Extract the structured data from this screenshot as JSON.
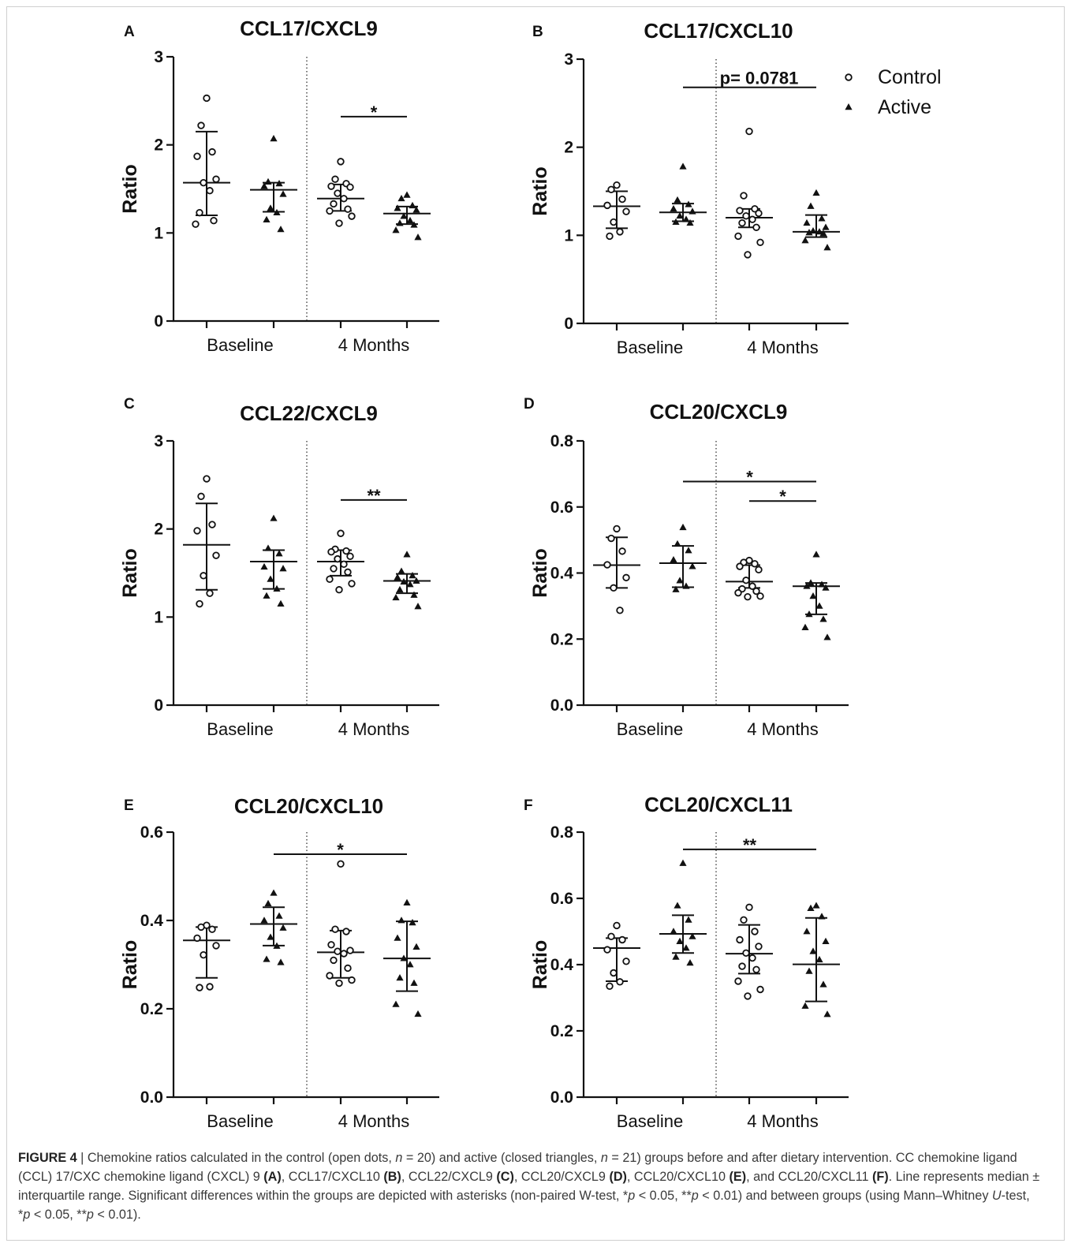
{
  "caption": {
    "label": "FIGURE 4",
    "separator": " | ",
    "text_1": "Chemokine ratios calculated in the control (open dots, ",
    "n_1": "n",
    "text_2": " = 20) and active (closed triangles, ",
    "n_2": "n",
    "text_3": " = 21) groups before and after dietary intervention. CC chemokine ligand (CCL) 17/CXC chemokine ligand (CXCL) 9 ",
    "ref_a": "(A)",
    "text_4": ", CCL17/CXCL10 ",
    "ref_b": "(B)",
    "text_5": ", CCL22/CXCL9 ",
    "ref_c": "(C)",
    "text_6": ", CCL20/CXCL9 ",
    "ref_d": "(D)",
    "text_7": ", CCL20/CXCL10 ",
    "ref_e": "(E)",
    "text_8": ", and CCL20/CXCL11 ",
    "ref_f": "(F)",
    "text_9": ". Line represents median ± interquartile range. Significant differences within the groups are depicted with asterisks (non-paired W-test, *",
    "p_1": "p",
    "text_10": " < 0.05, **",
    "p_2": "p",
    "text_11": " < 0.01) and between groups (using Mann–Whitney ",
    "u": "U",
    "text_12": "-test, *",
    "p_3": "p",
    "text_13": " < 0.05, **",
    "p_4": "p",
    "text_14": " < 0.01)."
  },
  "legend": {
    "items": [
      {
        "label": "Control",
        "marker": "open-circle"
      },
      {
        "label": "Active",
        "marker": "filled-triangle"
      }
    ]
  },
  "chart_data": [
    {
      "letter": "A",
      "title": "CCL17/CXCL9",
      "type": "scatter",
      "ylabel": "Ratio",
      "ylim": [
        0,
        3
      ],
      "yticks": [
        0,
        1,
        2,
        3
      ],
      "yticklabels": [
        "0",
        "1",
        "2",
        "3"
      ],
      "x_groups": [
        "Baseline",
        "4 Months"
      ],
      "series": [
        {
          "group": "Baseline",
          "marker": "circle",
          "points": [
            2.53,
            2.22,
            1.92,
            1.87,
            1.61,
            1.57,
            1.48,
            1.23,
            1.14,
            1.1
          ],
          "median": 1.57,
          "q1": 1.2,
          "q3": 2.15
        },
        {
          "group": "Baseline",
          "marker": "triangle",
          "points": [
            2.07,
            1.58,
            1.56,
            1.53,
            1.44,
            1.28,
            1.23,
            1.15,
            1.04
          ],
          "median": 1.49,
          "q1": 1.24,
          "q3": 1.57
        },
        {
          "group": "4 Months",
          "marker": "circle",
          "points": [
            1.81,
            1.61,
            1.56,
            1.53,
            1.52,
            1.45,
            1.39,
            1.33,
            1.27,
            1.25,
            1.19,
            1.11
          ],
          "median": 1.39,
          "q1": 1.25,
          "q3": 1.55
        },
        {
          "group": "4 Months",
          "marker": "triangle",
          "points": [
            1.43,
            1.39,
            1.31,
            1.28,
            1.26,
            1.19,
            1.14,
            1.11,
            1.09,
            1.03,
            0.95
          ],
          "median": 1.22,
          "q1": 1.1,
          "q3": 1.3
        }
      ],
      "sig": [
        {
          "label": "*",
          "y": 2.32,
          "from": 2,
          "to": 3
        }
      ]
    },
    {
      "letter": "B",
      "title": "CCL17/CXCL10",
      "type": "scatter",
      "ylabel": "Ratio",
      "ylim": [
        0,
        3
      ],
      "yticks": [
        0,
        1,
        2,
        3
      ],
      "yticklabels": [
        "0",
        "1",
        "2",
        "3"
      ],
      "x_groups": [
        "Baseline",
        "4 Months"
      ],
      "series": [
        {
          "group": "Baseline",
          "marker": "circle",
          "points": [
            1.57,
            1.52,
            1.41,
            1.34,
            1.27,
            1.15,
            1.04,
            0.99
          ],
          "median": 1.33,
          "q1": 1.08,
          "q3": 1.5
        },
        {
          "group": "Baseline",
          "marker": "triangle",
          "points": [
            1.78,
            1.4,
            1.35,
            1.3,
            1.27,
            1.22,
            1.18,
            1.15,
            1.14
          ],
          "median": 1.26,
          "q1": 1.16,
          "q3": 1.36
        },
        {
          "group": "4 Months",
          "marker": "circle",
          "points": [
            2.18,
            1.45,
            1.3,
            1.28,
            1.25,
            1.22,
            1.18,
            1.14,
            1.09,
            0.99,
            0.92,
            0.78
          ],
          "median": 1.2,
          "q1": 1.09,
          "q3": 1.3
        },
        {
          "group": "4 Months",
          "marker": "triangle",
          "points": [
            1.48,
            1.33,
            1.19,
            1.14,
            1.09,
            1.05,
            1.04,
            1.03,
            1.02,
            0.94,
            0.86
          ],
          "median": 1.04,
          "q1": 0.98,
          "q3": 1.23
        }
      ],
      "sig": [
        {
          "label": "p= 0.0781",
          "y": 2.68,
          "from": 1,
          "to": 3
        }
      ]
    },
    {
      "letter": "C",
      "title": "CCL22/CXCL9",
      "type": "scatter",
      "ylabel": "Ratio",
      "ylim": [
        0,
        3
      ],
      "yticks": [
        0,
        1,
        2,
        3
      ],
      "yticklabels": [
        "0",
        "1",
        "2",
        "3"
      ],
      "x_groups": [
        "Baseline",
        "4 Months"
      ],
      "series": [
        {
          "group": "Baseline",
          "marker": "circle",
          "points": [
            2.57,
            2.37,
            2.05,
            1.98,
            1.7,
            1.47,
            1.27,
            1.15
          ],
          "median": 1.82,
          "q1": 1.31,
          "q3": 2.29
        },
        {
          "group": "Baseline",
          "marker": "triangle",
          "points": [
            2.12,
            1.78,
            1.72,
            1.57,
            1.55,
            1.43,
            1.32,
            1.24,
            1.15
          ],
          "median": 1.63,
          "q1": 1.32,
          "q3": 1.76
        },
        {
          "group": "4 Months",
          "marker": "circle",
          "points": [
            1.95,
            1.77,
            1.75,
            1.74,
            1.69,
            1.66,
            1.6,
            1.55,
            1.51,
            1.43,
            1.38,
            1.31
          ],
          "median": 1.63,
          "q1": 1.47,
          "q3": 1.76
        },
        {
          "group": "4 Months",
          "marker": "triangle",
          "points": [
            1.71,
            1.52,
            1.47,
            1.45,
            1.41,
            1.4,
            1.37,
            1.31,
            1.25,
            1.22,
            1.12
          ],
          "median": 1.41,
          "q1": 1.27,
          "q3": 1.49
        }
      ],
      "sig": [
        {
          "label": "**",
          "y": 2.33,
          "from": 2,
          "to": 3
        }
      ]
    },
    {
      "letter": "D",
      "title": "CCL20/CXCL9",
      "type": "scatter",
      "ylabel": "Ratio",
      "ylim": [
        0,
        0.8
      ],
      "yticks": [
        0,
        0.2,
        0.4,
        0.6,
        0.8
      ],
      "yticklabels": [
        "0.0",
        "0.2",
        "0.4",
        "0.6",
        "0.8"
      ],
      "x_groups": [
        "Baseline",
        "4 Months"
      ],
      "series": [
        {
          "group": "Baseline",
          "marker": "circle",
          "points": [
            0.534,
            0.505,
            0.466,
            0.425,
            0.386,
            0.355,
            0.287
          ],
          "median": 0.424,
          "q1": 0.355,
          "q3": 0.508
        },
        {
          "group": "Baseline",
          "marker": "triangle",
          "points": [
            0.538,
            0.488,
            0.468,
            0.44,
            0.42,
            0.377,
            0.36,
            0.35
          ],
          "median": 0.43,
          "q1": 0.357,
          "q3": 0.482
        },
        {
          "group": "4 Months",
          "marker": "circle",
          "points": [
            0.438,
            0.432,
            0.428,
            0.42,
            0.41,
            0.378,
            0.36,
            0.352,
            0.345,
            0.34,
            0.33,
            0.328
          ],
          "median": 0.374,
          "q1": 0.355,
          "q3": 0.424
        },
        {
          "group": "4 Months",
          "marker": "triangle",
          "points": [
            0.456,
            0.37,
            0.365,
            0.36,
            0.355,
            0.33,
            0.3,
            0.275,
            0.26,
            0.235,
            0.205
          ],
          "median": 0.36,
          "q1": 0.275,
          "q3": 0.37
        }
      ],
      "sig": [
        {
          "label": "*",
          "y": 0.677,
          "from": 1,
          "to": 3
        },
        {
          "label": "*",
          "y": 0.618,
          "from": 2,
          "to": 3
        }
      ]
    },
    {
      "letter": "E",
      "title": "CCL20/CXCL10",
      "type": "scatter",
      "ylabel": "Ratio",
      "ylim": [
        0,
        0.6
      ],
      "yticks": [
        0,
        0.2,
        0.4,
        0.6
      ],
      "yticklabels": [
        "0.0",
        "0.2",
        "0.4",
        "0.6"
      ],
      "x_groups": [
        "Baseline",
        "4 Months"
      ],
      "series": [
        {
          "group": "Baseline",
          "marker": "circle",
          "points": [
            0.389,
            0.385,
            0.38,
            0.36,
            0.343,
            0.322,
            0.25,
            0.248
          ],
          "median": 0.355,
          "q1": 0.27,
          "q3": 0.385
        },
        {
          "group": "Baseline",
          "marker": "triangle",
          "points": [
            0.462,
            0.438,
            0.41,
            0.4,
            0.383,
            0.362,
            0.342,
            0.312,
            0.305
          ],
          "median": 0.392,
          "q1": 0.343,
          "q3": 0.43
        },
        {
          "group": "4 Months",
          "marker": "circle",
          "points": [
            0.528,
            0.38,
            0.375,
            0.345,
            0.332,
            0.33,
            0.325,
            0.31,
            0.292,
            0.275,
            0.265,
            0.258
          ],
          "median": 0.328,
          "q1": 0.27,
          "q3": 0.377
        },
        {
          "group": "4 Months",
          "marker": "triangle",
          "points": [
            0.44,
            0.4,
            0.395,
            0.36,
            0.34,
            0.314,
            0.3,
            0.27,
            0.258,
            0.21,
            0.188
          ],
          "median": 0.314,
          "q1": 0.24,
          "q3": 0.398
        }
      ],
      "sig": [
        {
          "label": "*",
          "y": 0.55,
          "from": 1,
          "to": 3
        }
      ]
    },
    {
      "letter": "F",
      "title": "CCL20/CXCL11",
      "type": "scatter",
      "ylabel": "Ratio",
      "ylim": [
        0,
        0.8
      ],
      "yticks": [
        0,
        0.2,
        0.4,
        0.6,
        0.8
      ],
      "yticklabels": [
        "0.0",
        "0.2",
        "0.4",
        "0.6",
        "0.8"
      ],
      "x_groups": [
        "Baseline",
        "4 Months"
      ],
      "series": [
        {
          "group": "Baseline",
          "marker": "circle",
          "points": [
            0.518,
            0.485,
            0.475,
            0.445,
            0.41,
            0.375,
            0.348,
            0.335
          ],
          "median": 0.45,
          "q1": 0.35,
          "q3": 0.48
        },
        {
          "group": "Baseline",
          "marker": "triangle",
          "points": [
            0.706,
            0.578,
            0.535,
            0.5,
            0.485,
            0.47,
            0.45,
            0.423,
            0.405
          ],
          "median": 0.493,
          "q1": 0.435,
          "q3": 0.549
        },
        {
          "group": "4 Months",
          "marker": "circle",
          "points": [
            0.573,
            0.535,
            0.5,
            0.475,
            0.455,
            0.435,
            0.42,
            0.395,
            0.385,
            0.35,
            0.325,
            0.305
          ],
          "median": 0.433,
          "q1": 0.373,
          "q3": 0.52
        },
        {
          "group": "4 Months",
          "marker": "triangle",
          "points": [
            0.578,
            0.57,
            0.545,
            0.5,
            0.47,
            0.44,
            0.415,
            0.38,
            0.34,
            0.275,
            0.25
          ],
          "median": 0.401,
          "q1": 0.289,
          "q3": 0.541
        }
      ],
      "sig": [
        {
          "label": "**",
          "y": 0.748,
          "from": 1,
          "to": 3
        }
      ]
    }
  ]
}
